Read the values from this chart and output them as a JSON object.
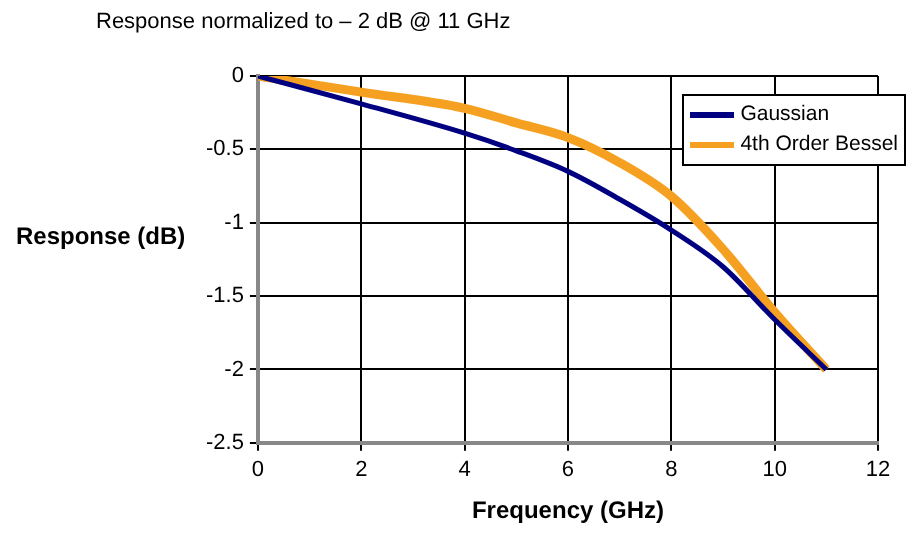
{
  "chart_data": {
    "type": "line",
    "title": "Response normalized to – 2 dB @ 11 GHz",
    "xlabel": "Frequency (GHz)",
    "ylabel": "Response (dB)",
    "x": [
      0,
      2,
      4,
      5,
      6,
      7,
      8,
      9,
      10,
      11
    ],
    "series": [
      {
        "name": "Gaussian",
        "color": "#000080",
        "values": [
          0,
          -0.19,
          -0.39,
          -0.51,
          -0.65,
          -0.84,
          -1.05,
          -1.3,
          -1.66,
          -2.0
        ]
      },
      {
        "name": "4th Order Bessel",
        "color": "#f5a020",
        "values": [
          0,
          -0.11,
          -0.22,
          -0.32,
          -0.42,
          -0.59,
          -0.82,
          -1.18,
          -1.61,
          -2.0
        ]
      }
    ],
    "xlim": [
      0,
      12
    ],
    "xticks": [
      0,
      2,
      4,
      6,
      8,
      10,
      12
    ],
    "ylim": [
      -2.5,
      0
    ],
    "yticks": [
      -2.5,
      -2,
      -1.5,
      -1,
      -0.5,
      0
    ],
    "grid": true,
    "legend": "top right",
    "marker": "none",
    "line_style": "solid"
  }
}
